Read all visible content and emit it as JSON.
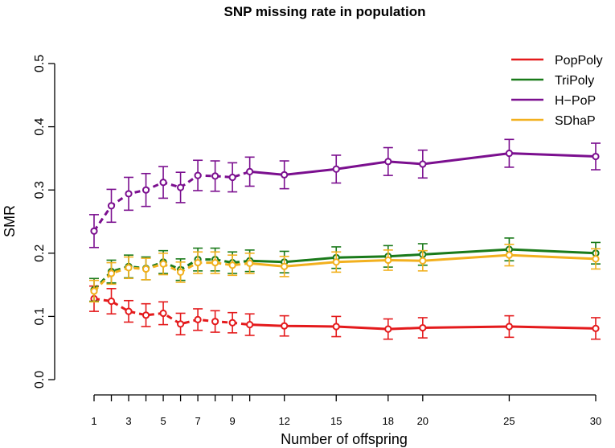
{
  "chart_data": {
    "type": "line",
    "title": "SNP missing rate in population",
    "xlabel": "Number of offspring",
    "ylabel": "SMR",
    "x": [
      1,
      2,
      3,
      4,
      5,
      6,
      7,
      8,
      9,
      10,
      12,
      15,
      18,
      20,
      25,
      30
    ],
    "x_ticks": [
      1,
      2,
      3,
      4,
      5,
      6,
      7,
      8,
      9,
      10,
      12,
      15,
      18,
      20,
      25,
      30
    ],
    "x_tick_labels": [
      "1",
      "3",
      "5",
      "7",
      "9",
      "12",
      "15",
      "18",
      "20",
      "25",
      "30"
    ],
    "y_ticks": [
      "0.0",
      "0.1",
      "0.2",
      "0.3",
      "0.4",
      "0.5"
    ],
    "ylim": [
      0,
      0.5
    ],
    "xlim": [
      1,
      30
    ],
    "dashed_until_x": 10,
    "legend_position": "top-right",
    "series": [
      {
        "name": "PopPoly",
        "color": "#e41a1c",
        "values": [
          0.128,
          0.124,
          0.108,
          0.102,
          0.105,
          0.088,
          0.095,
          0.092,
          0.09,
          0.087,
          0.085,
          0.084,
          0.08,
          0.082,
          0.084,
          0.081
        ],
        "errors": [
          0.02,
          0.02,
          0.017,
          0.018,
          0.018,
          0.017,
          0.017,
          0.017,
          0.016,
          0.017,
          0.016,
          0.016,
          0.016,
          0.016,
          0.017,
          0.017
        ]
      },
      {
        "name": "TriPoly",
        "color": "#1a7a1a",
        "values": [
          0.142,
          0.171,
          0.179,
          0.176,
          0.186,
          0.174,
          0.19,
          0.19,
          0.185,
          0.188,
          0.186,
          0.193,
          0.195,
          0.198,
          0.206,
          0.2
        ],
        "errors": [
          0.018,
          0.018,
          0.018,
          0.018,
          0.018,
          0.017,
          0.018,
          0.018,
          0.017,
          0.017,
          0.017,
          0.017,
          0.017,
          0.017,
          0.018,
          0.017
        ]
      },
      {
        "name": "H−PoP",
        "color": "#7b0f8f",
        "values": [
          0.235,
          0.275,
          0.294,
          0.3,
          0.312,
          0.304,
          0.323,
          0.322,
          0.32,
          0.329,
          0.324,
          0.333,
          0.345,
          0.341,
          0.358,
          0.353
        ],
        "errors": [
          0.026,
          0.026,
          0.026,
          0.026,
          0.025,
          0.024,
          0.024,
          0.024,
          0.023,
          0.023,
          0.022,
          0.022,
          0.022,
          0.022,
          0.022,
          0.021
        ]
      },
      {
        "name": "SDhaP",
        "color": "#f2b01e",
        "values": [
          0.14,
          0.168,
          0.177,
          0.175,
          0.183,
          0.17,
          0.185,
          0.185,
          0.181,
          0.184,
          0.179,
          0.186,
          0.189,
          0.188,
          0.197,
          0.191
        ],
        "errors": [
          0.017,
          0.017,
          0.017,
          0.017,
          0.017,
          0.016,
          0.017,
          0.017,
          0.016,
          0.016,
          0.016,
          0.016,
          0.016,
          0.016,
          0.017,
          0.016
        ]
      }
    ]
  }
}
